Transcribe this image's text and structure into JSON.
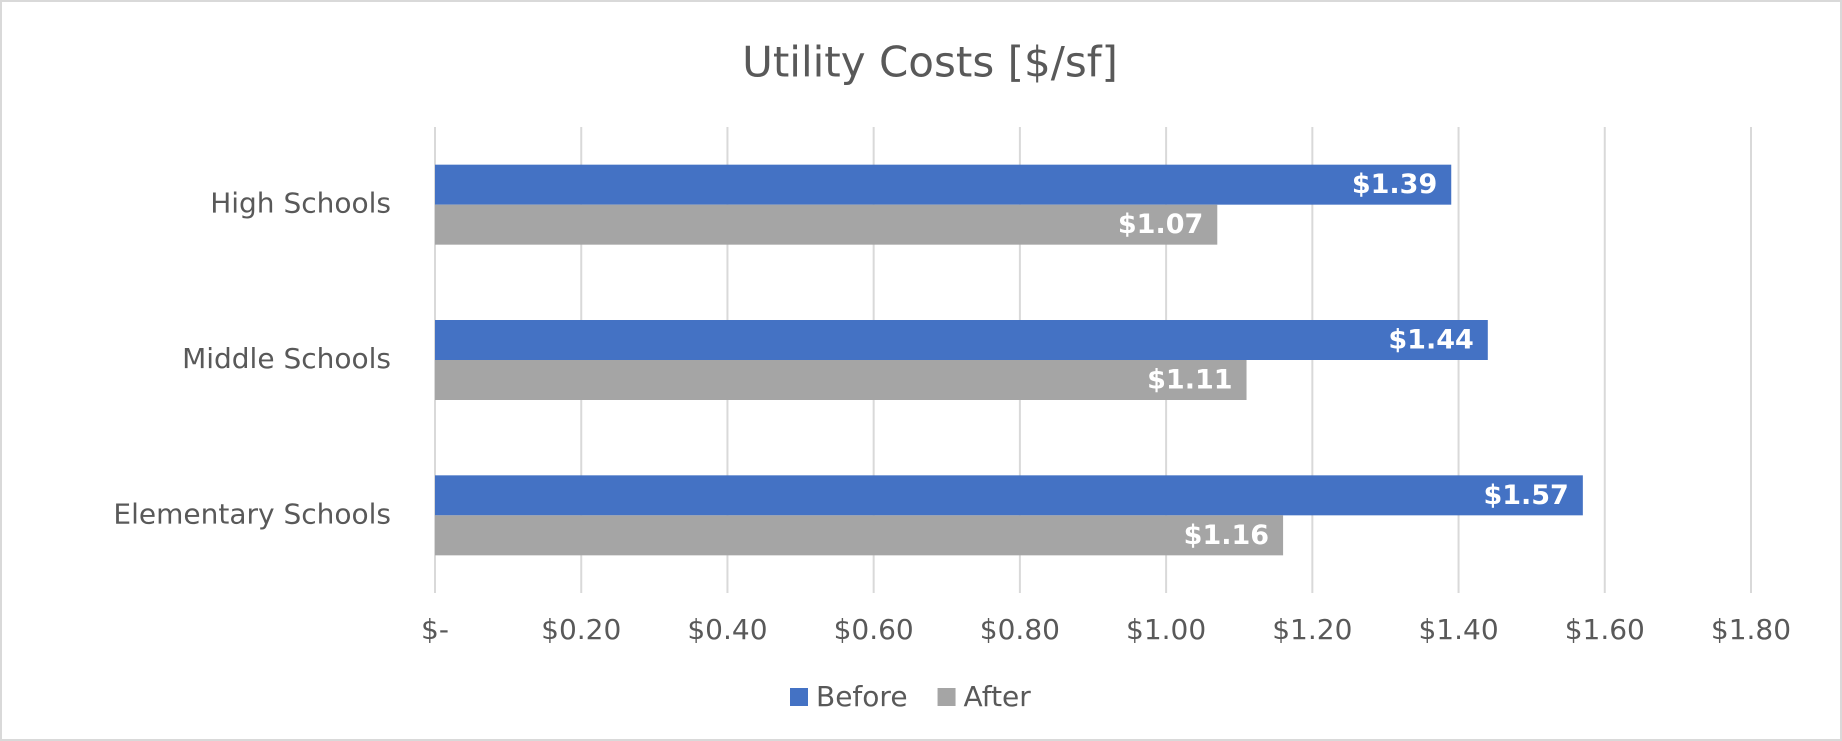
{
  "chart_data": {
    "type": "hbar",
    "title": "Utility Costs [$/sf]",
    "categories": [
      "High Schools",
      "Middle Schools",
      "Elementary Schools"
    ],
    "series": [
      {
        "name": "Before",
        "color": "#4472c4",
        "values": [
          1.39,
          1.44,
          1.57
        ],
        "value_labels": [
          "$1.39",
          "$1.44",
          "$1.57"
        ]
      },
      {
        "name": "After",
        "color": "#a5a5a5",
        "values": [
          1.07,
          1.11,
          1.16
        ],
        "value_labels": [
          "$1.07",
          "$1.11",
          "$1.16"
        ]
      }
    ],
    "xlim": [
      0,
      1.8
    ],
    "xticks": [
      {
        "value": 0,
        "label": "$-"
      },
      {
        "value": 0.2,
        "label": "$0.20"
      },
      {
        "value": 0.4,
        "label": "$0.40"
      },
      {
        "value": 0.6,
        "label": "$0.60"
      },
      {
        "value": 0.8,
        "label": "$0.80"
      },
      {
        "value": 1.0,
        "label": "$1.00"
      },
      {
        "value": 1.2,
        "label": "$1.20"
      },
      {
        "value": 1.4,
        "label": "$1.40"
      },
      {
        "value": 1.6,
        "label": "$1.60"
      },
      {
        "value": 1.8,
        "label": "$1.80"
      }
    ],
    "grid": true,
    "legend": "bottom"
  }
}
